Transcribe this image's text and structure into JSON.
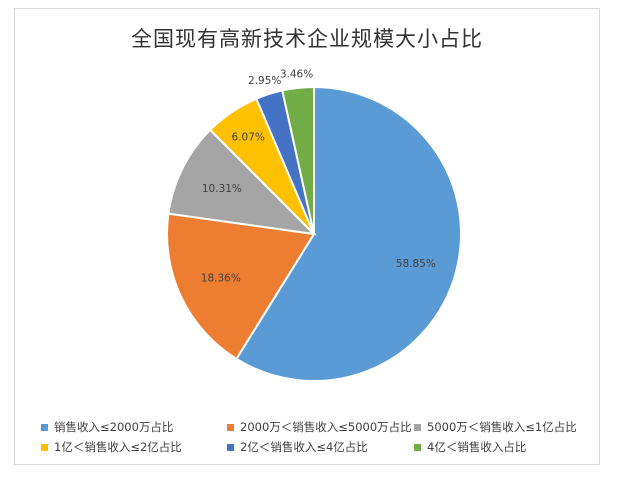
{
  "chart_data": {
    "type": "pie",
    "title": "全国现有高新技术企业规模大小占比",
    "slices": [
      {
        "label": "销售收入≤2000万占比",
        "value": 58.85,
        "value_label": "58.85%",
        "color": "#5B9BD5"
      },
      {
        "label": "2000万＜销售收入≤5000万占比",
        "value": 18.36,
        "value_label": "18.36%",
        "color": "#ED7D31"
      },
      {
        "label": "5000万＜销售收入≤1亿占比",
        "value": 10.31,
        "value_label": "10.31%",
        "color": "#A5A5A5"
      },
      {
        "label": "1亿＜销售收入≤2亿占比",
        "value": 6.07,
        "value_label": "6.07%",
        "color": "#FFC000"
      },
      {
        "label": "2亿＜销售收入≤4亿占比",
        "value": 2.95,
        "value_label": "2.95%",
        "color": "#4472C4"
      },
      {
        "label": "4亿＜销售收入占比",
        "value": 3.46,
        "value_label": "3.46%",
        "color": "#70AD47"
      }
    ],
    "legend_position": "bottom"
  }
}
